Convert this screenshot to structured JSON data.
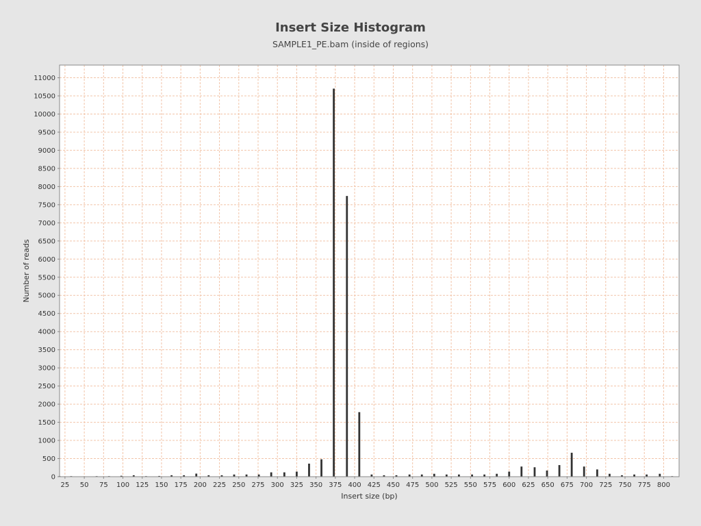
{
  "chart_data": {
    "type": "bar",
    "title": "Insert Size Histogram",
    "subtitle": "SAMPLE1_PE.bam (inside of regions)",
    "xlabel": "Insert size (bp)",
    "ylabel": "Number of reads",
    "xlim": [
      18,
      820
    ],
    "ylim": [
      0,
      11350
    ],
    "x_ticks": [
      25,
      50,
      75,
      100,
      125,
      150,
      175,
      200,
      225,
      250,
      275,
      300,
      325,
      350,
      375,
      400,
      425,
      450,
      475,
      500,
      525,
      550,
      575,
      600,
      625,
      650,
      675,
      700,
      725,
      750,
      775,
      800
    ],
    "y_ticks": [
      0,
      500,
      1000,
      1500,
      2000,
      2500,
      3000,
      3500,
      4000,
      4500,
      5000,
      5500,
      6000,
      6500,
      7000,
      7500,
      8000,
      8500,
      9000,
      9500,
      10000,
      10500,
      11000
    ],
    "grid": true,
    "colors": {
      "background": "#e6e6e6",
      "plot_background": "#ffffff",
      "grid": "#f2c4a8",
      "bar": "#333333",
      "axis": "#888888"
    },
    "series": [
      {
        "x": [
          18,
          33,
          50,
          66,
          82,
          98,
          114,
          130,
          147,
          163,
          179,
          195,
          211,
          228,
          244,
          260,
          276,
          292,
          309,
          325,
          341,
          357,
          373,
          390,
          406,
          422,
          438,
          454,
          471,
          487,
          503,
          519,
          535,
          552,
          568,
          584,
          600,
          616,
          633,
          649,
          665,
          681,
          697,
          714,
          730,
          746,
          762,
          778,
          795,
          811
        ],
        "values": [
          15,
          15,
          10,
          15,
          15,
          25,
          40,
          15,
          20,
          40,
          40,
          85,
          40,
          40,
          60,
          60,
          60,
          120,
          120,
          140,
          360,
          480,
          10700,
          7740,
          1780,
          60,
          40,
          40,
          60,
          60,
          80,
          60,
          60,
          60,
          60,
          80,
          140,
          280,
          260,
          170,
          320,
          660,
          280,
          200,
          80,
          40,
          60,
          60,
          80,
          15
        ]
      }
    ]
  }
}
